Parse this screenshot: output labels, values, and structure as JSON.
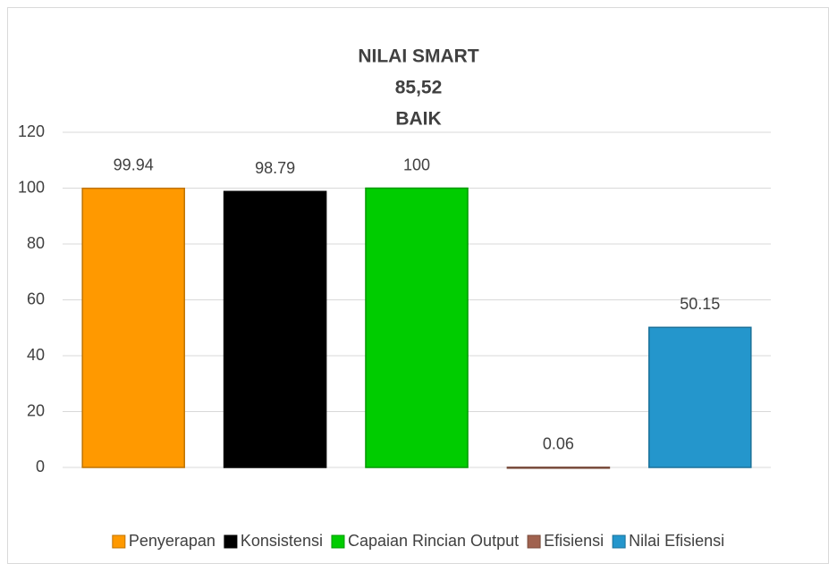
{
  "chart_data": {
    "type": "bar",
    "title": [
      "NILAI SMART",
      "85,52",
      "BAIK"
    ],
    "series": [
      {
        "name": "Penyerapan",
        "color": "#ff9900",
        "values": [
          99.94
        ]
      },
      {
        "name": "Konsistensi",
        "color": "#000000",
        "values": [
          98.79
        ]
      },
      {
        "name": "Capaian Rincian Output",
        "color": "#00cc00",
        "values": [
          100
        ]
      },
      {
        "name": "Efisiensi",
        "color": "#a0624f",
        "values": [
          0.06
        ]
      },
      {
        "name": "Nilai Efisiensi",
        "color": "#2496cc",
        "values": [
          50.15
        ]
      }
    ],
    "ylim": [
      0,
      120
    ],
    "yticks": [
      0,
      20,
      40,
      60,
      80,
      100,
      120
    ],
    "grid": true,
    "legend": "bottom"
  }
}
